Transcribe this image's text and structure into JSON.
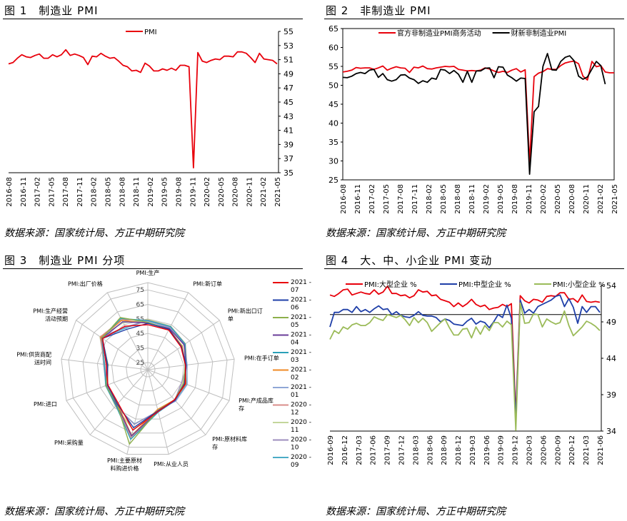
{
  "charts": [
    {
      "type": "line",
      "title": "图 1　制造业 PMI",
      "source": "数据来源：国家统计局、方正中期研究院",
      "series": [
        {
          "name": "PMI",
          "color": "#e8000b",
          "values": [
            50.4,
            50.6,
            51.2,
            51.7,
            51.4,
            51.3,
            51.6,
            51.8,
            51.2,
            51.2,
            51.7,
            51.4,
            51.7,
            52.4,
            51.6,
            51.8,
            51.6,
            51.3,
            50.3,
            51.5,
            51.4,
            51.9,
            51.5,
            51.2,
            51.3,
            50.8,
            50.2,
            50.0,
            49.4,
            49.5,
            49.2,
            50.5,
            50.1,
            49.4,
            49.4,
            49.7,
            49.5,
            49.8,
            49.5,
            50.2,
            50.2,
            50.0,
            35.7,
            52.0,
            50.8,
            50.6,
            50.9,
            51.1,
            51.0,
            51.5,
            51.5,
            51.4,
            52.1,
            52.1,
            51.9,
            51.3,
            50.6,
            51.9,
            51.1,
            51.0,
            50.9,
            50.4
          ]
        }
      ],
      "x_ticks": [
        "2016-08",
        "2016-11",
        "2017-02",
        "2017-05",
        "2017-08",
        "2017-11",
        "2018-02",
        "2018-05",
        "2018-08",
        "2018-11",
        "2019-02",
        "2019-05",
        "2019-08",
        "2019-11",
        "2020-02",
        "2020-05",
        "2020-08",
        "2020-11",
        "2021-02",
        "2021-05"
      ],
      "y_ticks": [
        55,
        53,
        51,
        49,
        47,
        45,
        43,
        41,
        39,
        37,
        35
      ],
      "ylim": [
        35,
        55
      ],
      "y_axis_side": "right",
      "legend_position": "top-left"
    },
    {
      "type": "line",
      "title": "图 2　非制造业 PMI",
      "source": "数据来源：国家统计局、方正中期研究院",
      "series": [
        {
          "name": "官方非制造业PMI商务活动",
          "color": "#e8000b",
          "values": [
            53.5,
            53.7,
            54.0,
            54.7,
            54.5,
            54.6,
            54.6,
            54.2,
            54.6,
            55.1,
            54.0,
            54.5,
            54.9,
            54.6,
            54.5,
            53.4,
            54.8,
            54.6,
            55.1,
            54.4,
            54.3,
            54.6,
            54.8,
            55.0,
            54.9,
            55.0,
            54.2,
            54.0,
            53.8,
            53.9,
            53.8,
            54.0,
            54.6,
            54.3,
            53.8,
            53.4,
            53.7,
            53.4,
            54.0,
            54.4,
            53.5,
            54.1,
            29.6,
            52.3,
            53.2,
            53.6,
            54.4,
            54.2,
            54.2,
            55.2,
            55.9,
            56.2,
            56.4,
            55.7,
            52.4,
            51.4,
            56.3,
            54.9,
            55.2,
            53.5,
            53.3,
            53.3
          ]
        },
        {
          "name": "财新非制造业PMI",
          "color": "#000000",
          "values": [
            52.1,
            52.0,
            52.4,
            53.1,
            53.4,
            53.1,
            54.0,
            54.2,
            52.1,
            53.1,
            51.5,
            51.1,
            51.5,
            52.7,
            52.8,
            51.9,
            51.5,
            50.5,
            51.2,
            50.8,
            51.9,
            51.6,
            54.2,
            54.0,
            53.1,
            53.9,
            52.9,
            50.8,
            53.7,
            50.8,
            53.8,
            53.8,
            54.5,
            54.6,
            52.0,
            54.9,
            54.8,
            52.7,
            52.0,
            51.1,
            51.9,
            51.8,
            26.5,
            43.0,
            44.4,
            55.0,
            58.4,
            54.1,
            54.0,
            56.3,
            57.4,
            57.8,
            56.5,
            52.4,
            51.6,
            52.2,
            54.3,
            56.3,
            55.2,
            50.3
          ]
        }
      ],
      "x_ticks": [
        "2016-08",
        "2016-11",
        "2017-02",
        "2017-05",
        "2017-08",
        "2017-11",
        "2018-02",
        "2018-05",
        "2018-08",
        "2018-11",
        "2019-02",
        "2019-05",
        "2019-08",
        "2019-11",
        "2020-02",
        "2020-05",
        "2020-08",
        "2020-11",
        "2021-02",
        "2021-05"
      ],
      "y_ticks": [
        65,
        60,
        55,
        50,
        45,
        40,
        35,
        30,
        25
      ],
      "ylim": [
        25,
        65
      ],
      "y_axis_side": "left",
      "legend_position": "top"
    },
    {
      "type": "radar",
      "title": "图 3　制造业 PMI 分项",
      "source": "数据来源：国家统计局、方正中期研究院",
      "axes": [
        "PMI:生产",
        "PMI:新订单",
        "PMI:新出口订单",
        "PMI:在手订单",
        "PMI:产成品库存",
        "PMI:原材料库存",
        "PMI:从业人员",
        "PMI:主要原材料购进价格",
        "PMI:采购量",
        "PMI:进口",
        "PMI:供货商配送时间",
        "PMI:生产经营活动预期",
        "PMI:出厂价格"
      ],
      "ring_ticks": [
        25,
        35,
        45,
        55,
        65,
        75
      ],
      "rlim": [
        20,
        80
      ],
      "series": [
        {
          "name": "2021-07",
          "color": "#e8000b",
          "values": [
            51.0,
            50.9,
            47.7,
            46.1,
            47.6,
            47.7,
            49.6,
            62.9,
            50.8,
            49.4,
            48.9,
            57.8,
            53.8
          ]
        },
        {
          "name": "2021-06",
          "color": "#1f3fa8",
          "values": [
            51.9,
            51.5,
            48.1,
            46.6,
            47.1,
            48.0,
            49.2,
            61.2,
            51.7,
            49.7,
            47.9,
            57.9,
            51.4
          ]
        },
        {
          "name": "2021-05",
          "color": "#8db04b",
          "values": [
            52.7,
            51.3,
            48.3,
            45.9,
            46.5,
            47.7,
            48.9,
            72.8,
            51.9,
            50.9,
            47.6,
            58.2,
            60.6
          ]
        },
        {
          "name": "2021-04",
          "color": "#6a3d9a",
          "values": [
            52.2,
            52.0,
            50.4,
            46.4,
            46.8,
            48.3,
            49.6,
            66.9,
            52.4,
            50.6,
            48.7,
            58.3,
            57.3
          ]
        },
        {
          "name": "2021-03",
          "color": "#2aa0b8",
          "values": [
            53.9,
            53.6,
            51.2,
            46.6,
            46.7,
            48.4,
            50.1,
            69.4,
            53.1,
            51.1,
            50.0,
            58.5,
            59.8
          ]
        },
        {
          "name": "2021-02",
          "color": "#f08a24",
          "values": [
            51.9,
            51.5,
            48.8,
            46.1,
            48.0,
            47.7,
            48.1,
            66.7,
            51.6,
            49.6,
            47.9,
            59.2,
            58.5
          ]
        },
        {
          "name": "2021-01",
          "color": "#8fa7d6",
          "values": [
            53.5,
            52.3,
            50.2,
            47.3,
            49.0,
            49.0,
            48.4,
            67.1,
            52.0,
            49.8,
            48.8,
            57.9,
            57.2
          ]
        },
        {
          "name": "2020-12",
          "color": "#d98c8a",
          "values": [
            54.2,
            53.6,
            51.3,
            47.1,
            46.2,
            48.6,
            49.6,
            68.0,
            53.2,
            50.4,
            49.9,
            59.8,
            58.9
          ]
        },
        {
          "name": "2020-11",
          "color": "#c3d69b",
          "values": [
            54.7,
            53.9,
            51.5,
            46.7,
            45.7,
            48.6,
            49.5,
            62.6,
            53.7,
            50.9,
            50.1,
            60.1,
            56.5
          ]
        },
        {
          "name": "2020-10",
          "color": "#9e8dbd",
          "values": [
            53.9,
            52.8,
            51.0,
            47.2,
            44.9,
            48.0,
            49.3,
            58.8,
            53.1,
            50.8,
            50.6,
            59.3,
            53.2
          ]
        },
        {
          "name": "2020-09",
          "color": "#4bacc6",
          "values": [
            54.0,
            52.8,
            50.8,
            46.1,
            48.4,
            48.5,
            49.6,
            58.5,
            53.6,
            50.4,
            50.7,
            58.7,
            52.5
          ]
        }
      ]
    },
    {
      "type": "line",
      "title": "图 4　大、中、小企业 PMI 变动",
      "source": "数据来源：国家统计局、方正中期研究院",
      "series": [
        {
          "name": "PMI:大型企业 %",
          "color": "#e8000b",
          "values": [
            52.7,
            52.5,
            52.9,
            53.4,
            53.5,
            52.7,
            52.9,
            53.1,
            52.9,
            52.8,
            53.4,
            52.8,
            53.1,
            53.9,
            52.9,
            52.9,
            52.6,
            52.7,
            52.3,
            52.6,
            53.4,
            53.1,
            53.2,
            52.6,
            52.7,
            52.1,
            51.9,
            51.7,
            51.1,
            51.6,
            51.1,
            51.5,
            52.1,
            51.4,
            51.1,
            51.3,
            50.7,
            50.9,
            51.0,
            51.4,
            51.1,
            51.5,
            36.1,
            52.6,
            51.9,
            51.6,
            52.1,
            52.0,
            51.7,
            52.5,
            52.6,
            52.5,
            53.0,
            53.0,
            52.1,
            52.2,
            51.7,
            52.7,
            51.8,
            51.7,
            51.8,
            51.7
          ]
        },
        {
          "name": "PMI:中型企业 %",
          "color": "#1f3fa8",
          "values": [
            48.3,
            50.3,
            50.3,
            50.7,
            50.7,
            50.3,
            51.1,
            50.4,
            50.7,
            50.3,
            50.8,
            51.2,
            50.7,
            50.8,
            50.0,
            50.4,
            49.9,
            49.7,
            49.6,
            49.9,
            50.4,
            49.9,
            49.8,
            49.8,
            49.6,
            49.0,
            49.4,
            49.2,
            48.7,
            48.6,
            48.5,
            49.1,
            49.5,
            48.7,
            49.1,
            48.9,
            48.2,
            49.0,
            50.0,
            49.6,
            51.3,
            49.5,
            35.5,
            52.0,
            50.2,
            50.7,
            50.2,
            51.1,
            51.4,
            51.7,
            52.0,
            52.5,
            52.7,
            51.1,
            52.2,
            51.0,
            48.8,
            51.1,
            50.3,
            51.1,
            51.1,
            50.3
          ]
        },
        {
          "name": "PMI:小型企业 %",
          "color": "#9bbb59",
          "values": [
            46.6,
            47.8,
            47.4,
            48.3,
            48.0,
            48.6,
            48.8,
            48.5,
            48.5,
            48.9,
            49.7,
            49.4,
            49.2,
            50.0,
            49.8,
            49.6,
            49.9,
            49.3,
            48.5,
            49.6,
            48.9,
            49.5,
            48.9,
            47.7,
            48.3,
            48.9,
            49.4,
            48.2,
            47.2,
            47.2,
            48.0,
            48.1,
            46.8,
            48.3,
            47.3,
            48.5,
            47.8,
            48.9,
            48.9,
            48.3,
            49.1,
            48.6,
            34.1,
            51.6,
            48.8,
            48.9,
            50.1,
            50.0,
            48.3,
            49.4,
            49.0,
            48.7,
            48.9,
            50.5,
            48.5,
            47.1,
            47.7,
            48.3,
            49.1,
            48.8,
            48.4,
            47.8
          ]
        }
      ],
      "x_ticks": [
        "2016-09",
        "2016-12",
        "2017-03",
        "2017-06",
        "2017-09",
        "2017-12",
        "2018-03",
        "2018-06",
        "2018-09",
        "2018-12",
        "2019-03",
        "2019-06",
        "2019-09",
        "2019-12",
        "2020-03",
        "2020-06",
        "2020-09",
        "2020-12",
        "2021-03",
        "2021-06"
      ],
      "y_ticks": [
        54,
        49,
        44,
        39,
        34
      ],
      "ylim": [
        34,
        54
      ],
      "ref_line": 50,
      "y_axis_side": "right",
      "legend_position": "top"
    }
  ]
}
